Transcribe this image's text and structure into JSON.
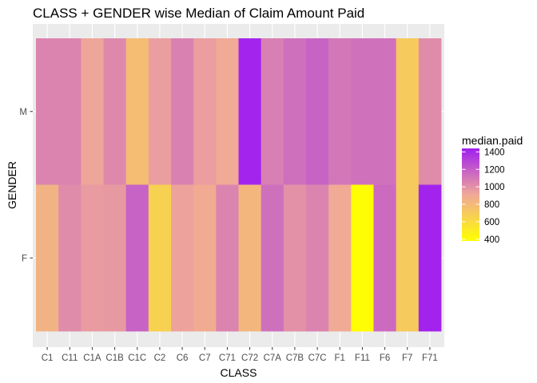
{
  "chart_data": {
    "type": "heatmap",
    "title": "CLASS + GENDER wise Median of Claim Amount Paid",
    "xlabel": "CLASS",
    "ylabel": "GENDER",
    "x": [
      "C1",
      "C11",
      "C1A",
      "C1B",
      "C1C",
      "C2",
      "C6",
      "C7",
      "C71",
      "C72",
      "C7A",
      "C7B",
      "C7C",
      "F1",
      "F11",
      "F6",
      "F7",
      "F71"
    ],
    "y": [
      "M",
      "F"
    ],
    "values": [
      [
        1050,
        1050,
        920,
        1030,
        780,
        950,
        1060,
        950,
        900,
        1420,
        1070,
        1130,
        1180,
        1100,
        1120,
        1120,
        700,
        1020
      ],
      [
        840,
        1020,
        960,
        970,
        1180,
        660,
        930,
        890,
        1050,
        820,
        1130,
        1000,
        1050,
        900,
        390,
        1150,
        700,
        1430
      ]
    ],
    "legend": {
      "title": "median.paid",
      "placement": "right",
      "ticks": [
        400,
        600,
        800,
        1000,
        1200,
        1400
      ],
      "range": [
        380,
        1440
      ]
    },
    "colors": {
      "low": "#ffff00",
      "mid": "#f0a898",
      "high": "#a020f0",
      "panel_background": "#ebebeb",
      "gridline": "#ffffff"
    },
    "grid": true
  }
}
